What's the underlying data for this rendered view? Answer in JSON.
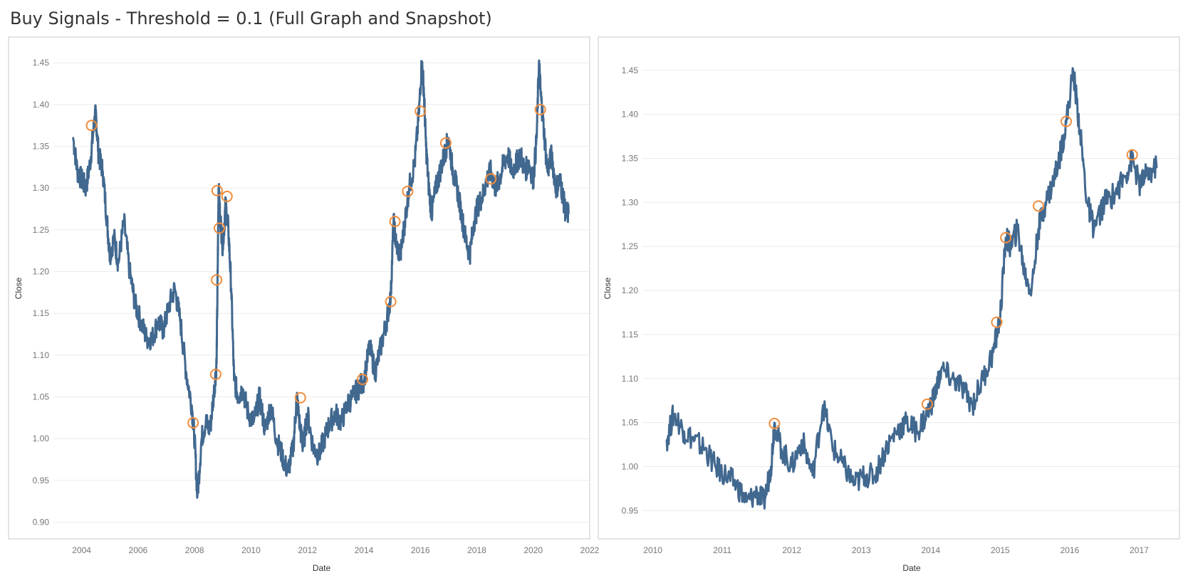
{
  "title": "Buy Signals - Threshold = 0.1 (Full Graph and Snapshot)",
  "colors": {
    "line": "#41688f",
    "marker": "#f28d3c",
    "grid": "#ececec"
  },
  "chart_data": [
    {
      "type": "line",
      "xlabel": "Date",
      "ylabel": "Close",
      "xlim": [
        2003.0,
        2022.0
      ],
      "ylim": [
        0.88,
        1.48
      ],
      "x_ticks": [
        "2004",
        "2006",
        "2008",
        "2010",
        "2012",
        "2014",
        "2016",
        "2018",
        "2020",
        "2022"
      ],
      "y_ticks": [
        "0.90",
        "0.95",
        "1.00",
        "1.05",
        "1.10",
        "1.15",
        "1.20",
        "1.25",
        "1.30",
        "1.35",
        "1.40",
        "1.45"
      ],
      "series": [
        {
          "x": [
            2003.7,
            2003.85,
            2004.0,
            2004.15,
            2004.3,
            2004.42,
            2004.5,
            2004.6,
            2004.75,
            2004.9,
            2005.0,
            2005.15,
            2005.3,
            2005.5,
            2005.7,
            2005.9,
            2006.1,
            2006.3,
            2006.5,
            2006.7,
            2006.9,
            2007.1,
            2007.3,
            2007.5,
            2007.7,
            2007.9,
            2008.0,
            2008.1,
            2008.25,
            2008.4,
            2008.55,
            2008.7,
            2008.78,
            2008.82,
            2008.85,
            2008.9,
            2009.0,
            2009.1,
            2009.2,
            2009.3,
            2009.4,
            2009.55,
            2009.7,
            2009.9,
            2010.1,
            2010.3,
            2010.5,
            2010.7,
            2010.9,
            2011.1,
            2011.3,
            2011.5,
            2011.62,
            2011.75,
            2011.85,
            2012.0,
            2012.2,
            2012.4,
            2012.6,
            2012.8,
            2013.0,
            2013.2,
            2013.4,
            2013.6,
            2013.8,
            2014.0,
            2014.2,
            2014.4,
            2014.6,
            2014.8,
            2014.95,
            2015.05,
            2015.15,
            2015.3,
            2015.45,
            2015.6,
            2015.8,
            2015.95,
            2016.05,
            2016.12,
            2016.2,
            2016.3,
            2016.4,
            2016.55,
            2016.7,
            2016.85,
            2017.0,
            2017.15,
            2017.3,
            2017.45,
            2017.6,
            2017.75,
            2017.9,
            2018.05,
            2018.2,
            2018.35,
            2018.5,
            2018.65,
            2018.8,
            2018.95,
            2019.1,
            2019.25,
            2019.4,
            2019.55,
            2019.7,
            2019.85,
            2020.0,
            2020.12,
            2020.2,
            2020.27,
            2020.35,
            2020.5,
            2020.65,
            2020.8,
            2020.95,
            2021.05,
            2021.15,
            2021.25
          ],
          "y": [
            1.36,
            1.32,
            1.31,
            1.3,
            1.33,
            1.37,
            1.39,
            1.34,
            1.32,
            1.26,
            1.22,
            1.24,
            1.21,
            1.26,
            1.2,
            1.16,
            1.14,
            1.12,
            1.12,
            1.14,
            1.13,
            1.16,
            1.18,
            1.14,
            1.08,
            1.04,
            1.0,
            0.93,
            1.0,
            1.02,
            1.01,
            1.06,
            1.09,
            1.2,
            1.3,
            1.27,
            1.23,
            1.28,
            1.25,
            1.18,
            1.07,
            1.05,
            1.06,
            1.03,
            1.02,
            1.05,
            1.01,
            1.04,
            1.0,
            0.98,
            0.96,
            0.99,
            1.05,
            1.01,
            0.99,
            1.03,
            0.99,
            0.98,
            1.0,
            1.02,
            1.03,
            1.02,
            1.04,
            1.05,
            1.06,
            1.07,
            1.11,
            1.08,
            1.11,
            1.14,
            1.17,
            1.26,
            1.23,
            1.22,
            1.26,
            1.3,
            1.33,
            1.39,
            1.45,
            1.42,
            1.35,
            1.3,
            1.27,
            1.3,
            1.32,
            1.34,
            1.36,
            1.32,
            1.3,
            1.27,
            1.24,
            1.22,
            1.26,
            1.28,
            1.29,
            1.31,
            1.32,
            1.3,
            1.31,
            1.33,
            1.34,
            1.32,
            1.33,
            1.34,
            1.32,
            1.33,
            1.31,
            1.36,
            1.45,
            1.41,
            1.38,
            1.32,
            1.34,
            1.3,
            1.31,
            1.29,
            1.27,
            1.27
          ]
        }
      ],
      "markers": {
        "x": [
          2004.35,
          2007.95,
          2008.75,
          2008.78,
          2008.8,
          2008.88,
          2009.15,
          2011.75,
          2013.95,
          2014.95,
          2015.1,
          2015.55,
          2016.0,
          2016.9,
          2018.5,
          2020.25
        ],
        "y": [
          1.375,
          1.019,
          1.077,
          1.19,
          1.297,
          1.252,
          1.29,
          1.049,
          1.071,
          1.164,
          1.26,
          1.296,
          1.392,
          1.354,
          1.311,
          1.394
        ]
      }
    },
    {
      "type": "line",
      "xlabel": "Date",
      "ylabel": "Close",
      "xlim": [
        2009.85,
        2017.6
      ],
      "ylim": [
        0.918,
        1.487
      ],
      "x_ticks": [
        "2010",
        "2011",
        "2012",
        "2013",
        "2014",
        "2015",
        "2016",
        "2017"
      ],
      "y_ticks": [
        "0.95",
        "1.00",
        "1.05",
        "1.10",
        "1.15",
        "1.20",
        "1.25",
        "1.30",
        "1.35",
        "1.40",
        "1.45"
      ],
      "series": [
        {
          "x": [
            2010.2,
            2010.3,
            2010.45,
            2010.6,
            2010.75,
            2010.9,
            2011.05,
            2011.2,
            2011.35,
            2011.5,
            2011.6,
            2011.7,
            2011.75,
            2011.85,
            2012.0,
            2012.15,
            2012.3,
            2012.45,
            2012.6,
            2012.75,
            2012.9,
            2013.05,
            2013.2,
            2013.35,
            2013.5,
            2013.65,
            2013.8,
            2013.95,
            2014.05,
            2014.15,
            2014.3,
            2014.45,
            2014.6,
            2014.75,
            2014.9,
            2015.0,
            2015.08,
            2015.15,
            2015.25,
            2015.35,
            2015.45,
            2015.55,
            2015.65,
            2015.75,
            2015.85,
            2015.95,
            2016.05,
            2016.15,
            2016.25,
            2016.35,
            2016.5,
            2016.65,
            2016.8,
            2016.9,
            2017.0,
            2017.1,
            2017.25
          ],
          "y": [
            1.03,
            1.06,
            1.04,
            1.03,
            1.02,
            1.0,
            0.99,
            0.98,
            0.96,
            0.97,
            0.96,
            1.0,
            1.05,
            1.02,
            1.0,
            1.03,
            0.99,
            1.07,
            1.02,
            1.0,
            0.98,
            0.99,
            0.99,
            1.02,
            1.04,
            1.05,
            1.04,
            1.06,
            1.08,
            1.11,
            1.1,
            1.09,
            1.07,
            1.1,
            1.13,
            1.17,
            1.26,
            1.25,
            1.27,
            1.22,
            1.2,
            1.27,
            1.3,
            1.32,
            1.35,
            1.39,
            1.45,
            1.38,
            1.3,
            1.27,
            1.3,
            1.31,
            1.33,
            1.35,
            1.32,
            1.33,
            1.34
          ]
        }
      ],
      "markers": {
        "x": [
          2011.75,
          2013.95,
          2014.95,
          2015.08,
          2015.55,
          2015.95,
          2016.9
        ],
        "y": [
          1.049,
          1.071,
          1.164,
          1.26,
          1.296,
          1.392,
          1.354
        ]
      }
    }
  ]
}
